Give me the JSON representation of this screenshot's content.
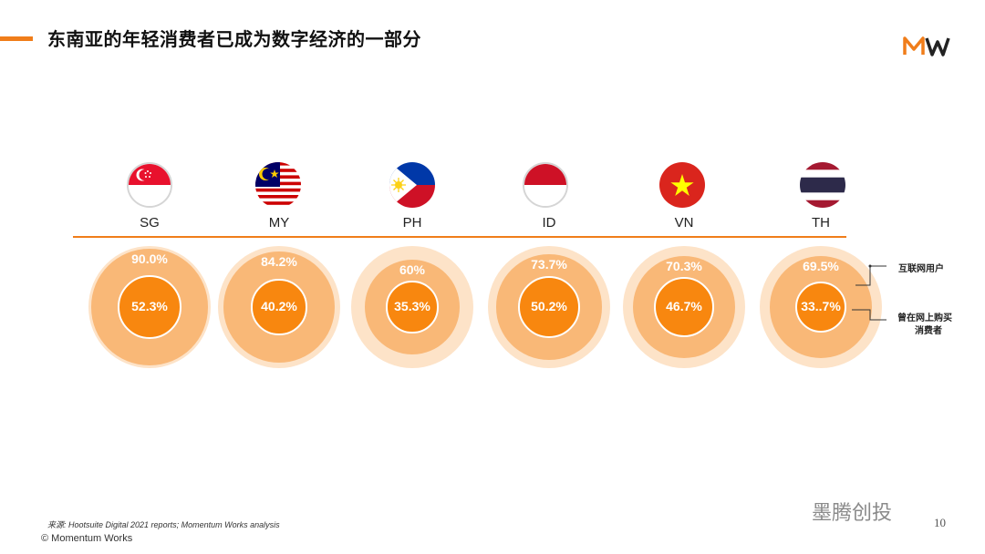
{
  "title": "东南亚的年轻消费者已成为数字经济的一部分",
  "colors": {
    "accent": "#f07d1a",
    "outer": "#f9b877",
    "inner": "#f8870f",
    "halo": "#fde3c8"
  },
  "legend": {
    "internet_users": "互联网用户",
    "online_shoppers_line1": "曾在网上购买",
    "online_shoppers_line2": "消费者"
  },
  "chart_data": {
    "type": "nested-circles",
    "series": [
      {
        "name": "互联网用户",
        "unit": "%"
      },
      {
        "name": "曾在网上购买消费者",
        "unit": "%"
      }
    ],
    "categories": [
      "SG",
      "MY",
      "PH",
      "ID",
      "VN",
      "TH"
    ],
    "countries": [
      {
        "code": "SG",
        "internet_users": 90.0,
        "internet_label": "90.0%",
        "online_shoppers": 52.3,
        "shopper_label": "52.3%"
      },
      {
        "code": "MY",
        "internet_users": 84.2,
        "internet_label": "84.2%",
        "online_shoppers": 40.2,
        "shopper_label": "40.2%"
      },
      {
        "code": "PH",
        "internet_users": 60,
        "internet_label": "60%",
        "online_shoppers": 35.3,
        "shopper_label": "35.3%"
      },
      {
        "code": "ID",
        "internet_users": 73.7,
        "internet_label": "73.7%",
        "online_shoppers": 50.2,
        "shopper_label": "50.2%"
      },
      {
        "code": "VN",
        "internet_users": 70.3,
        "internet_label": "70.3%",
        "online_shoppers": 46.7,
        "shopper_label": "46.7%"
      },
      {
        "code": "TH",
        "internet_users": 69.5,
        "internet_label": "69.5%",
        "online_shoppers": 33.7,
        "shopper_label": "33..7%"
      }
    ]
  },
  "footer": {
    "source": "来源: Hootsuite Digital 2021 reports; Momentum Works analysis",
    "copyright": "© Momentum Works",
    "page_number": "10",
    "watermark": "墨腾创投"
  }
}
